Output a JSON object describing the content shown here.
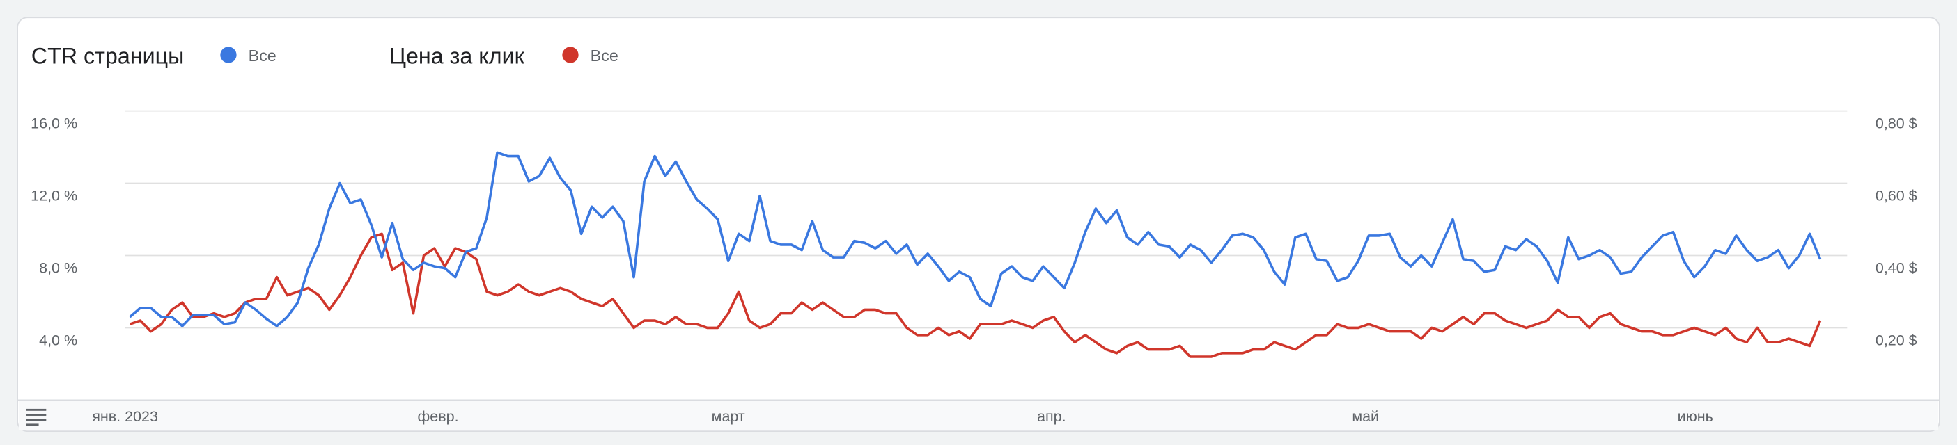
{
  "chart_data": {
    "type": "line",
    "ylabel": "CTR страницы",
    "y2label": "Цена за клик",
    "categories": [
      "янв. 2023",
      null,
      null,
      null,
      null,
      null,
      null,
      null,
      null,
      null,
      null,
      null,
      null,
      null,
      null,
      null,
      null,
      null,
      null,
      null,
      null,
      null,
      null,
      null,
      null,
      null,
      null,
      null,
      null,
      null,
      null,
      "февр.",
      null,
      null,
      null,
      null,
      null,
      null,
      null,
      null,
      null,
      null,
      null,
      null,
      null,
      null,
      null,
      null,
      null,
      null,
      null,
      null,
      null,
      null,
      null,
      null,
      null,
      null,
      null,
      "март",
      null,
      null,
      null,
      null,
      null,
      null,
      null,
      null,
      null,
      null,
      null,
      null,
      null,
      null,
      null,
      null,
      null,
      null,
      null,
      null,
      null,
      null,
      null,
      null,
      null,
      null,
      null,
      null,
      null,
      null,
      "апр.",
      null,
      null,
      null,
      null,
      null,
      null,
      null,
      null,
      null,
      null,
      null,
      null,
      null,
      null,
      null,
      null,
      null,
      null,
      null,
      null,
      null,
      null,
      null,
      null,
      null,
      null,
      null,
      null,
      null,
      "май",
      null,
      null,
      null,
      null,
      null,
      null,
      null,
      null,
      null,
      null,
      null,
      null,
      null,
      null,
      null,
      null,
      null,
      null,
      null,
      null,
      null,
      null,
      null,
      null,
      null,
      null,
      null,
      null,
      null,
      null,
      "июнь",
      null,
      null,
      null,
      null,
      null,
      null,
      null,
      null,
      null,
      null,
      null,
      null,
      null
    ],
    "series": [
      {
        "name": "Все",
        "color": "#3a78e0",
        "axis": "y",
        "values": [
          null,
          null,
          null,
          4.6,
          5.1,
          5.1,
          4.6,
          4.6,
          4.1,
          4.7,
          4.7,
          4.7,
          4.2,
          4.3,
          5.4,
          5.0,
          4.5,
          4.1,
          4.6,
          5.4,
          7.3,
          8.6,
          10.6,
          12.0,
          10.9,
          11.1,
          9.7,
          7.9,
          9.8,
          7.8,
          7.2,
          7.6,
          7.4,
          7.3,
          6.8,
          8.2,
          8.4,
          10.1,
          13.7,
          13.5,
          13.5,
          12.1,
          12.4,
          13.4,
          12.3,
          11.6,
          9.2,
          10.7,
          10.1,
          10.7,
          9.9,
          6.8,
          12.1,
          13.5,
          12.4,
          13.2,
          12.1,
          11.1,
          10.6,
          10.0,
          7.7,
          9.2,
          8.8,
          11.3,
          8.8,
          8.6,
          8.6,
          8.3,
          9.9,
          8.3,
          7.9,
          7.9,
          8.8,
          8.7,
          8.4,
          8.8,
          8.1,
          8.6,
          7.5,
          8.1,
          7.4,
          6.6,
          7.1,
          6.8,
          5.6,
          5.2,
          7.0,
          7.4,
          6.8,
          6.6,
          7.4,
          6.8,
          6.2,
          7.6,
          9.3,
          10.6,
          9.8,
          10.5,
          9.0,
          8.6,
          9.3,
          8.6,
          8.5,
          7.9,
          8.6,
          8.3,
          7.6,
          8.3,
          9.1,
          9.2,
          9.0,
          8.3,
          7.1,
          6.4,
          9.0,
          9.2,
          7.8,
          7.7,
          6.6,
          6.8,
          7.7,
          9.1,
          9.1,
          9.2,
          7.9,
          7.4,
          8.0,
          7.4,
          8.7,
          10.0,
          7.8,
          7.7,
          7.1,
          7.2,
          8.5,
          8.3,
          8.9,
          8.5,
          7.7,
          6.5,
          9.0,
          7.8,
          8.0,
          8.3,
          7.9,
          7.0,
          7.1,
          7.9,
          8.5,
          9.1,
          9.3,
          7.7,
          6.8,
          7.4,
          8.3,
          8.1,
          9.1,
          8.3,
          7.7,
          7.9,
          8.3,
          7.3,
          8.0,
          9.2,
          7.8
        ]
      },
      {
        "name": "Все",
        "color": "#d0362b",
        "axis": "y2",
        "values": [
          null,
          null,
          null,
          0.21,
          0.22,
          0.19,
          0.21,
          0.25,
          0.27,
          0.23,
          0.23,
          0.24,
          0.23,
          0.24,
          0.27,
          0.28,
          0.28,
          0.34,
          0.29,
          0.3,
          0.31,
          0.29,
          0.25,
          0.29,
          0.34,
          0.4,
          0.45,
          0.46,
          0.36,
          0.38,
          0.24,
          0.4,
          0.42,
          0.37,
          0.42,
          0.41,
          0.39,
          0.3,
          0.29,
          0.3,
          0.32,
          0.3,
          0.29,
          0.3,
          0.31,
          0.3,
          0.28,
          0.27,
          0.26,
          0.28,
          0.24,
          0.2,
          0.22,
          0.22,
          0.21,
          0.23,
          0.21,
          0.21,
          0.2,
          0.2,
          0.24,
          0.3,
          0.22,
          0.2,
          0.21,
          0.24,
          0.24,
          0.27,
          0.25,
          0.27,
          0.25,
          0.23,
          0.23,
          0.25,
          0.25,
          0.24,
          0.24,
          0.2,
          0.18,
          0.18,
          0.2,
          0.18,
          0.19,
          0.17,
          0.21,
          0.21,
          0.21,
          0.22,
          0.21,
          0.2,
          0.22,
          0.23,
          0.19,
          0.16,
          0.18,
          0.16,
          0.14,
          0.13,
          0.15,
          0.16,
          0.14,
          0.14,
          0.14,
          0.15,
          0.12,
          0.12,
          0.12,
          0.13,
          0.13,
          0.13,
          0.14,
          0.14,
          0.16,
          0.15,
          0.14,
          0.16,
          0.18,
          0.18,
          0.21,
          0.2,
          0.2,
          0.21,
          0.2,
          0.19,
          0.19,
          0.19,
          0.17,
          0.2,
          0.19,
          0.21,
          0.23,
          0.21,
          0.24,
          0.24,
          0.22,
          0.21,
          0.2,
          0.21,
          0.22,
          0.25,
          0.23,
          0.23,
          0.2,
          0.23,
          0.24,
          0.21,
          0.2,
          0.19,
          0.19,
          0.18,
          0.18,
          0.19,
          0.2,
          0.19,
          0.18,
          0.2,
          0.17,
          0.16,
          0.2,
          0.16,
          0.16,
          0.17,
          0.16,
          0.15,
          0.22
        ]
      }
    ],
    "ylim": [
      0,
      16
    ],
    "yticks": [
      {
        "value": 4,
        "label": "4,0 %"
      },
      {
        "value": 8,
        "label": "8,0 %"
      },
      {
        "value": 12,
        "label": "12,0 %"
      },
      {
        "value": 16,
        "label": "16,0 %"
      }
    ],
    "y2lim": [
      0,
      0.8
    ],
    "y2ticks": [
      {
        "value": 0.2,
        "label": "0,20 $"
      },
      {
        "value": 0.4,
        "label": "0,40 $"
      },
      {
        "value": 0.6,
        "label": "0,60 $"
      },
      {
        "value": 0.8,
        "label": "0,80 $"
      }
    ],
    "grid": true
  }
}
